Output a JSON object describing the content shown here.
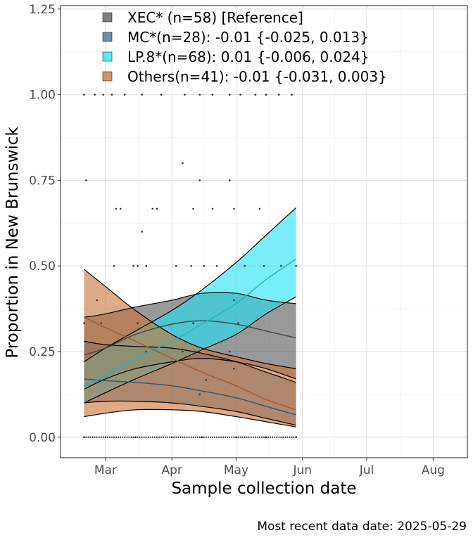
{
  "chart_data": {
    "type": "area",
    "xlabel": "Sample collection date",
    "ylabel": "Proportion in New Brunswick",
    "caption": "Most recent data date: 2025-05-29",
    "x_axis": {
      "range": [
        "2025-02-08",
        "2025-08-17"
      ],
      "ticks": [
        {
          "label": "Mar",
          "date": "2025-03-01"
        },
        {
          "label": "Apr",
          "date": "2025-04-01"
        },
        {
          "label": "May",
          "date": "2025-05-01"
        },
        {
          "label": "Jun",
          "date": "2025-06-01"
        },
        {
          "label": "Jul",
          "date": "2025-07-01"
        },
        {
          "label": "Aug",
          "date": "2025-08-01"
        }
      ]
    },
    "y_axis": {
      "range": [
        -0.06,
        1.26
      ],
      "ticks": [
        {
          "label": "0.00",
          "value": 0
        },
        {
          "label": "0.25",
          "value": 0.25
        },
        {
          "label": "0.50",
          "value": 0.5
        },
        {
          "label": "0.75",
          "value": 0.75
        },
        {
          "label": "1.00",
          "value": 1.0
        },
        {
          "label": "1.25",
          "value": 1.25
        }
      ]
    },
    "grid": true,
    "legend_position": "top-left",
    "dates": [
      "2025-02-19",
      "2025-03-01",
      "2025-03-15",
      "2025-04-01",
      "2025-04-15",
      "2025-05-01",
      "2025-05-15",
      "2025-05-29"
    ],
    "series": [
      {
        "name": "XEC* (n=58)  [Reference]",
        "color": "#555555",
        "fit": [
          0.24,
          0.26,
          0.3,
          0.33,
          0.34,
          0.33,
          0.31,
          0.29
        ],
        "lower": [
          0.14,
          0.17,
          0.2,
          0.22,
          0.23,
          0.22,
          0.2,
          0.17
        ],
        "upper": [
          0.35,
          0.36,
          0.38,
          0.4,
          0.42,
          0.42,
          0.4,
          0.39
        ]
      },
      {
        "name": "MC*(n=28): -0.01 {-0.025, 0.013}",
        "color": "#3a6f8f",
        "fit": [
          0.17,
          0.165,
          0.16,
          0.15,
          0.135,
          0.115,
          0.09,
          0.065
        ],
        "lower": [
          0.1,
          0.105,
          0.105,
          0.1,
          0.09,
          0.075,
          0.055,
          0.035
        ],
        "upper": [
          0.28,
          0.27,
          0.265,
          0.26,
          0.245,
          0.22,
          0.19,
          0.16
        ]
      },
      {
        "name": "LP.8*(n=68): 0.01 {-0.006, 0.024}",
        "color": "#22e3f3",
        "fit": [
          0.15,
          0.18,
          0.23,
          0.28,
          0.33,
          0.39,
          0.46,
          0.52
        ],
        "lower": [
          0.1,
          0.13,
          0.17,
          0.215,
          0.255,
          0.3,
          0.36,
          0.41
        ],
        "upper": [
          0.22,
          0.26,
          0.31,
          0.37,
          0.43,
          0.51,
          0.59,
          0.67
        ]
      },
      {
        "name": "Others(n=41): -0.01 {-0.031, 0.003}",
        "color": "#c87137",
        "fit": [
          0.35,
          0.32,
          0.28,
          0.23,
          0.19,
          0.15,
          0.11,
          0.08
        ],
        "lower": [
          0.06,
          0.07,
          0.08,
          0.08,
          0.075,
          0.06,
          0.045,
          0.03
        ],
        "upper": [
          0.49,
          0.44,
          0.37,
          0.3,
          0.26,
          0.235,
          0.215,
          0.2
        ]
      }
    ],
    "observations": [
      {
        "date": "2025-02-19",
        "y": 0.0
      },
      {
        "date": "2025-03-01",
        "y": 0.0
      },
      {
        "date": "2025-03-15",
        "y": 0.0
      },
      {
        "date": "2025-04-01",
        "y": 0.0
      },
      {
        "date": "2025-04-15",
        "y": 0.0
      },
      {
        "date": "2025-05-01",
        "y": 0.0
      },
      {
        "date": "2025-05-15",
        "y": 0.0
      },
      {
        "date": "2025-05-29",
        "y": 0.0
      },
      {
        "date": "2025-02-19",
        "y": 1.0
      },
      {
        "date": "2025-02-24",
        "y": 1.0
      },
      {
        "date": "2025-02-28",
        "y": 1.0
      },
      {
        "date": "2025-03-04",
        "y": 1.0
      },
      {
        "date": "2025-03-10",
        "y": 1.0
      },
      {
        "date": "2025-03-18",
        "y": 1.0
      },
      {
        "date": "2025-03-27",
        "y": 1.0
      },
      {
        "date": "2025-04-07",
        "y": 1.0
      },
      {
        "date": "2025-04-14",
        "y": 1.0
      },
      {
        "date": "2025-04-20",
        "y": 1.0
      },
      {
        "date": "2025-04-28",
        "y": 1.0
      },
      {
        "date": "2025-05-03",
        "y": 1.0
      },
      {
        "date": "2025-05-10",
        "y": 1.0
      },
      {
        "date": "2025-05-15",
        "y": 1.0
      },
      {
        "date": "2025-05-21",
        "y": 1.0
      },
      {
        "date": "2025-05-27",
        "y": 1.0
      },
      {
        "date": "2025-02-20",
        "y": 0.75
      },
      {
        "date": "2025-04-14",
        "y": 0.75
      },
      {
        "date": "2025-04-28",
        "y": 0.75
      },
      {
        "date": "2025-04-06",
        "y": 0.8
      },
      {
        "date": "2025-03-06",
        "y": 0.667
      },
      {
        "date": "2025-03-08",
        "y": 0.667
      },
      {
        "date": "2025-03-23",
        "y": 0.667
      },
      {
        "date": "2025-03-25",
        "y": 0.667
      },
      {
        "date": "2025-04-11",
        "y": 0.667
      },
      {
        "date": "2025-04-20",
        "y": 0.667
      },
      {
        "date": "2025-04-30",
        "y": 0.667
      },
      {
        "date": "2025-05-12",
        "y": 0.667
      },
      {
        "date": "2025-03-18",
        "y": 0.6
      },
      {
        "date": "2025-03-05",
        "y": 0.5
      },
      {
        "date": "2025-03-14",
        "y": 0.5
      },
      {
        "date": "2025-03-16",
        "y": 0.5
      },
      {
        "date": "2025-03-20",
        "y": 0.5
      },
      {
        "date": "2025-04-03",
        "y": 0.5
      },
      {
        "date": "2025-04-10",
        "y": 0.5
      },
      {
        "date": "2025-04-16",
        "y": 0.5
      },
      {
        "date": "2025-04-22",
        "y": 0.5
      },
      {
        "date": "2025-04-29",
        "y": 0.5
      },
      {
        "date": "2025-05-05",
        "y": 0.5
      },
      {
        "date": "2025-05-14",
        "y": 0.5
      },
      {
        "date": "2025-05-22",
        "y": 0.5
      },
      {
        "date": "2025-05-29",
        "y": 0.5
      },
      {
        "date": "2025-02-25",
        "y": 0.4
      },
      {
        "date": "2025-04-30",
        "y": 0.4
      },
      {
        "date": "2025-02-19",
        "y": 0.333
      },
      {
        "date": "2025-02-27",
        "y": 0.333
      },
      {
        "date": "2025-03-16",
        "y": 0.333
      },
      {
        "date": "2025-04-11",
        "y": 0.333
      },
      {
        "date": "2025-05-02",
        "y": 0.333
      },
      {
        "date": "2025-03-20",
        "y": 0.25
      },
      {
        "date": "2025-04-06",
        "y": 0.25
      },
      {
        "date": "2025-04-12",
        "y": 0.25
      },
      {
        "date": "2025-04-28",
        "y": 0.25
      },
      {
        "date": "2025-04-30",
        "y": 0.2
      },
      {
        "date": "2025-04-17",
        "y": 0.167
      },
      {
        "date": "2025-04-14",
        "y": 0.125
      }
    ]
  }
}
